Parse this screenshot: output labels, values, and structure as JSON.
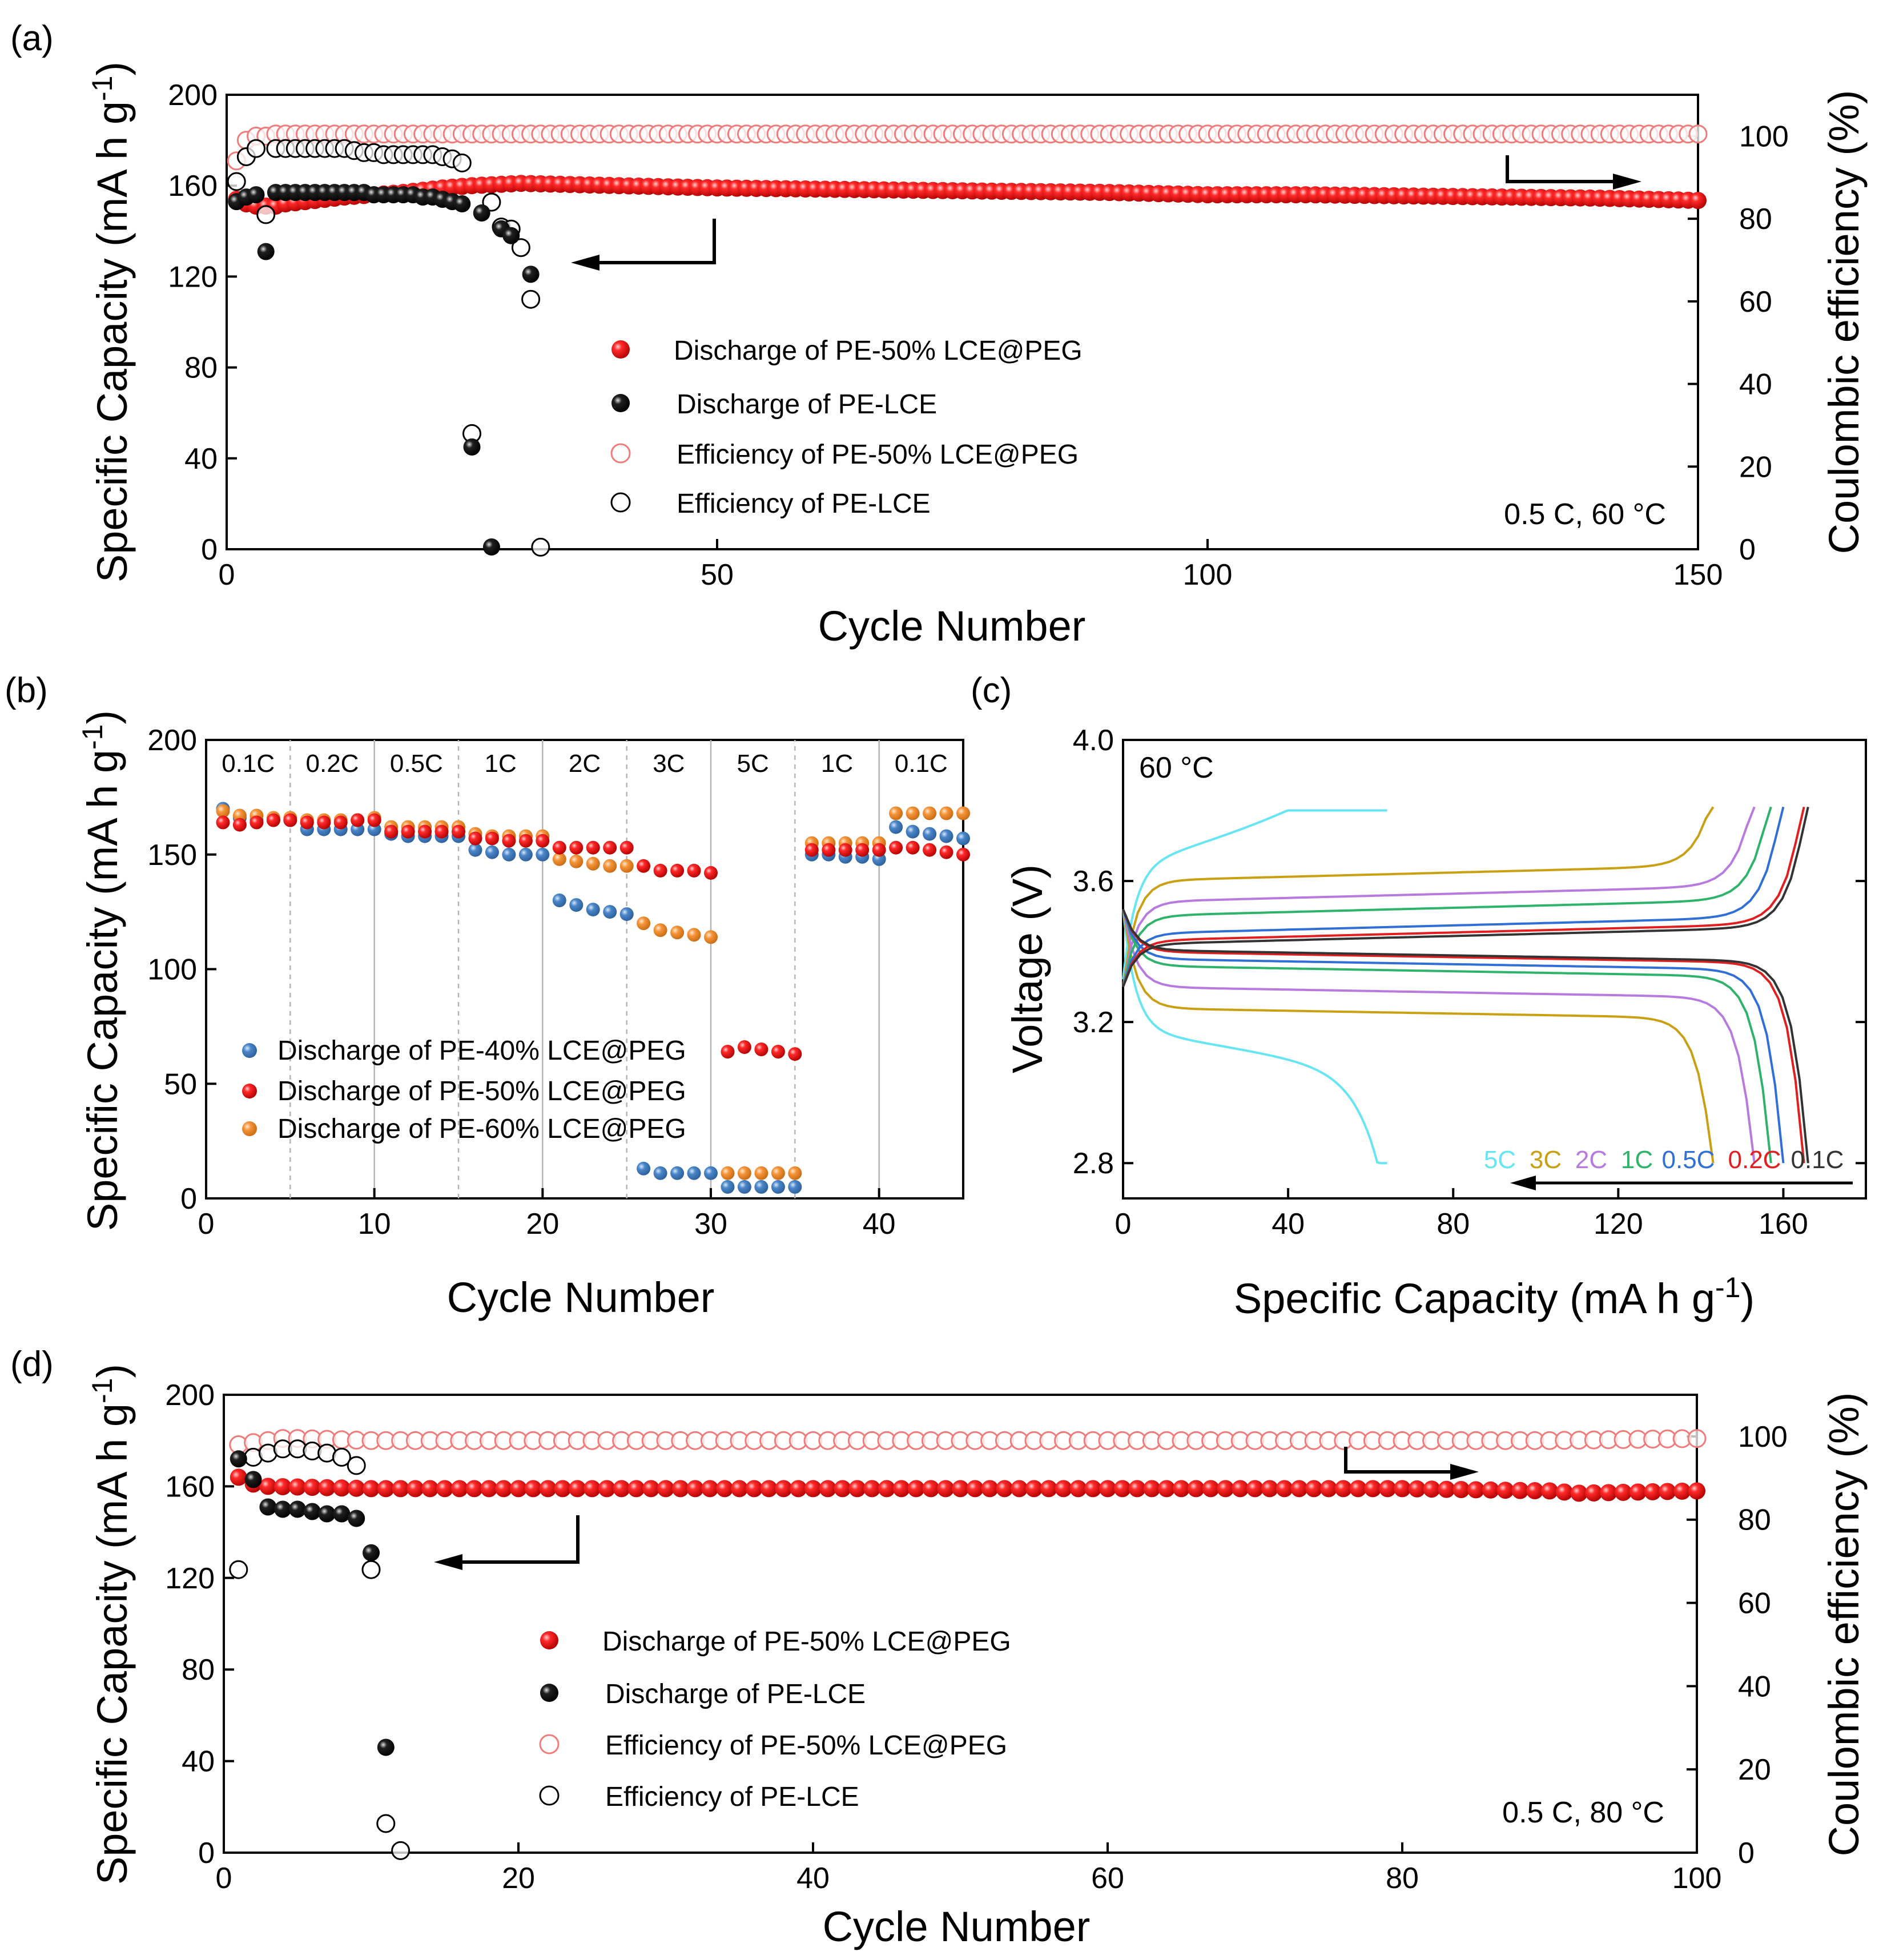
{
  "colors": {
    "pe50": "#e31a1c",
    "pelce": "#000000",
    "pe50_eff": "#f07b7b",
    "pe40": "#4a86c8",
    "pe60": "#f5953a",
    "curves": {
      "5C": "#66e5f2",
      "3C": "#c9a014",
      "2C": "#b77be0",
      "1C": "#2fb36a",
      "0.5C": "#2f6fd6",
      "0.2C": "#e02020",
      "0.1C": "#333333"
    }
  },
  "chart_data": [
    {
      "panel_label": "(a)",
      "type": "scatter",
      "xlabel": "Cycle Number",
      "ylabel": "Specific Capacity (mA h g",
      "ylabel_sup": "-1",
      "ylabel_close": ")",
      "y2label": "Coulombic efficiency (%)",
      "xlim": [
        0,
        150
      ],
      "ylim": [
        0,
        200
      ],
      "y2lim": [
        0,
        110
      ],
      "xticks": [
        0,
        50,
        100,
        150
      ],
      "yticks": [
        0,
        40,
        80,
        120,
        160,
        200
      ],
      "y2ticks": [
        0,
        20,
        40,
        60,
        80,
        100
      ],
      "annotation": "0.5 C, 60 °C",
      "legend": [
        "Discharge of   PE-50% LCE@PEG",
        "Discharge of   PE-LCE",
        "Efficiency of PE-50% LCE@PEG",
        "Efficiency of PE-LCE"
      ],
      "series": [
        {
          "name": "Discharge of PE-50% LCE@PEG",
          "axis": "left",
          "style": "filled-red",
          "points": [
            [
              1,
              154
            ],
            [
              2,
              152
            ],
            [
              3,
              151
            ],
            [
              4,
              151
            ],
            [
              5,
              151
            ],
            [
              6,
              152
            ],
            [
              8,
              153
            ],
            [
              10,
              154
            ],
            [
              12,
              155
            ],
            [
              15,
              156
            ],
            [
              18,
              157
            ],
            [
              20,
              158
            ],
            [
              22,
              159
            ],
            [
              25,
              160
            ],
            [
              30,
              161
            ],
            [
              40,
              160
            ],
            [
              50,
              159
            ],
            [
              60,
              158.5
            ],
            [
              70,
              158
            ],
            [
              80,
              157.5
            ],
            [
              90,
              157
            ],
            [
              100,
              156
            ],
            [
              110,
              156
            ],
            [
              120,
              155.5
            ],
            [
              130,
              155
            ],
            [
              140,
              154.5
            ],
            [
              150,
              153.5
            ]
          ]
        },
        {
          "name": "Discharge of PE-LCE",
          "axis": "left",
          "style": "filled-black",
          "points": [
            [
              1,
              153
            ],
            [
              2,
              155
            ],
            [
              3,
              156
            ],
            [
              4,
              131
            ],
            [
              5,
              157
            ],
            [
              6,
              157
            ],
            [
              7,
              157
            ],
            [
              8,
              157
            ],
            [
              9,
              157
            ],
            [
              10,
              157
            ],
            [
              11,
              157
            ],
            [
              12,
              157
            ],
            [
              13,
              157
            ],
            [
              14,
              157
            ],
            [
              15,
              156
            ],
            [
              16,
              156
            ],
            [
              17,
              156
            ],
            [
              18,
              156
            ],
            [
              19,
              156
            ],
            [
              20,
              155
            ],
            [
              21,
              155
            ],
            [
              22,
              154
            ],
            [
              23,
              153
            ],
            [
              24,
              152
            ],
            [
              25,
              45
            ],
            [
              26,
              148
            ],
            [
              27,
              1
            ],
            [
              28,
              141
            ],
            [
              29,
              138
            ],
            [
              31,
              121
            ]
          ]
        },
        {
          "name": "Efficiency of PE-50% LCE@PEG",
          "axis": "right",
          "style": "open-red",
          "points": [
            [
              1,
              94
            ],
            [
              2,
              99
            ],
            [
              3,
              100
            ],
            [
              4,
              100
            ],
            [
              5,
              100.5
            ],
            [
              6,
              100.5
            ],
            [
              7,
              100.5
            ],
            [
              8,
              100.5
            ],
            [
              9,
              100.5
            ],
            [
              10,
              100.5
            ],
            [
              12,
              100.5
            ],
            [
              15,
              100.5
            ],
            [
              20,
              100.5
            ],
            [
              30,
              100.5
            ],
            [
              40,
              100.5
            ],
            [
              50,
              100.5
            ],
            [
              60,
              100.5
            ],
            [
              70,
              100.5
            ],
            [
              80,
              100.5
            ],
            [
              90,
              100.5
            ],
            [
              100,
              100.5
            ],
            [
              110,
              100.5
            ],
            [
              120,
              100.5
            ],
            [
              130,
              100.5
            ],
            [
              140,
              100.5
            ],
            [
              150,
              100.5
            ]
          ]
        },
        {
          "name": "Efficiency of PE-LCE",
          "axis": "right",
          "style": "open-black",
          "points": [
            [
              1,
              89
            ],
            [
              2,
              95
            ],
            [
              3,
              97
            ],
            [
              4,
              81
            ],
            [
              5,
              97
            ],
            [
              6,
              97
            ],
            [
              7,
              97
            ],
            [
              8,
              97
            ],
            [
              9,
              97
            ],
            [
              10,
              97
            ],
            [
              11,
              97
            ],
            [
              12,
              97
            ],
            [
              13,
              96.5
            ],
            [
              14,
              96
            ],
            [
              15,
              96
            ],
            [
              16,
              95.5
            ],
            [
              17,
              95.5
            ],
            [
              18,
              95.5
            ],
            [
              19,
              95.5
            ],
            [
              20,
              95.5
            ],
            [
              21,
              95.5
            ],
            [
              22,
              95
            ],
            [
              23,
              94.5
            ],
            [
              24,
              93.5
            ],
            [
              25,
              28
            ],
            [
              27,
              84
            ],
            [
              28,
              78
            ],
            [
              29,
              77.5
            ],
            [
              30,
              73
            ],
            [
              31,
              60.5
            ],
            [
              32,
              0.5
            ]
          ]
        }
      ]
    },
    {
      "panel_label": "(b)",
      "type": "scatter",
      "xlabel": "Cycle Number",
      "ylabel": "Specific Capacity (mA h g",
      "ylabel_sup": "-1",
      "ylabel_close": ")",
      "xlim": [
        0,
        45
      ],
      "ylim": [
        0,
        200
      ],
      "xticks": [
        0,
        10,
        20,
        30,
        40
      ],
      "yticks": [
        0,
        50,
        100,
        150,
        200
      ],
      "rate_labels": [
        "0.1C",
        "0.2C",
        "0.5C",
        "1C",
        "2C",
        "3C",
        "5C",
        "1C",
        "0.1C"
      ],
      "rate_boundaries": [
        5,
        10,
        15,
        20,
        25,
        30,
        35,
        40
      ],
      "legend": [
        "Discharge of   PE-40% LCE@PEG",
        "Discharge of   PE-50% LCE@PEG",
        "Discharge of   PE-60% LCE@PEG"
      ],
      "series": [
        {
          "name": "Discharge of PE-40% LCE@PEG",
          "values": [
            170,
            166,
            165,
            165,
            165,
            161,
            161,
            161,
            161,
            161,
            159,
            158,
            158,
            158,
            158,
            152,
            151,
            150,
            150,
            150,
            130,
            128,
            126,
            125,
            124,
            13,
            11,
            11,
            11,
            11,
            5,
            5,
            5,
            5,
            5,
            150,
            150,
            149,
            149,
            148,
            162,
            160,
            159,
            158,
            157
          ]
        },
        {
          "name": "Discharge of PE-50% LCE@PEG",
          "values": [
            164,
            163,
            164,
            165,
            165,
            164,
            164,
            164,
            165,
            165,
            160,
            160,
            160,
            160,
            160,
            157,
            157,
            156,
            156,
            156,
            153,
            153,
            153,
            153,
            153,
            145,
            143,
            143,
            143,
            142,
            64,
            66,
            65,
            64,
            63,
            152,
            152,
            152,
            152,
            152,
            153,
            153,
            152,
            151,
            150
          ]
        },
        {
          "name": "Discharge of PE-60% LCE@PEG",
          "values": [
            169,
            167,
            167,
            166,
            166,
            165,
            165,
            165,
            165,
            166,
            162,
            162,
            162,
            162,
            162,
            159,
            158,
            158,
            158,
            158,
            148,
            147,
            146,
            145,
            145,
            120,
            117,
            116,
            115,
            114,
            11,
            11,
            11,
            11,
            11,
            155,
            155,
            155,
            155,
            155,
            168,
            168,
            168,
            168,
            168
          ]
        }
      ]
    },
    {
      "panel_label": "(c)",
      "type": "line",
      "xlabel": "Specific Capacity (mA h g",
      "xlabel_sup": "-1",
      "xlabel_close": ")",
      "ylabel": "Voltage (V)",
      "xlim": [
        0,
        180
      ],
      "ylim": [
        2.7,
        4.0
      ],
      "xticks": [
        0,
        40,
        80,
        120,
        160
      ],
      "yticks": [
        2.8,
        3.2,
        3.6,
        4.0
      ],
      "annotation": "60 °C",
      "rates": [
        "5C",
        "3C",
        "2C",
        "1C",
        "0.5C",
        "0.2C",
        "0.1C"
      ],
      "series": [
        {
          "name": "5C",
          "capacity": 64,
          "charge_plateau": 3.62,
          "discharge_plateau": 3.18
        },
        {
          "name": "3C",
          "capacity": 143,
          "charge_plateau": 3.6,
          "discharge_plateau": 3.24
        },
        {
          "name": "2C",
          "capacity": 153,
          "charge_plateau": 3.54,
          "discharge_plateau": 3.3
        },
        {
          "name": "1C",
          "capacity": 157,
          "charge_plateau": 3.5,
          "discharge_plateau": 3.36
        },
        {
          "name": "0.5C",
          "capacity": 160,
          "charge_plateau": 3.45,
          "discharge_plateau": 3.38
        },
        {
          "name": "0.2C",
          "capacity": 165,
          "charge_plateau": 3.43,
          "discharge_plateau": 3.4
        },
        {
          "name": "0.1C",
          "capacity": 166,
          "charge_plateau": 3.42,
          "discharge_plateau": 3.405
        }
      ]
    },
    {
      "panel_label": "(d)",
      "type": "scatter",
      "xlabel": "Cycle Number",
      "ylabel": "Specific Capacity (mA h g",
      "ylabel_sup": "-1",
      "ylabel_close": ")",
      "y2label": "Coulombic efficiency (%)",
      "xlim": [
        0,
        100
      ],
      "ylim": [
        0,
        200
      ],
      "y2lim": [
        0,
        110
      ],
      "xticks": [
        0,
        20,
        40,
        60,
        80,
        100
      ],
      "yticks": [
        0,
        40,
        80,
        120,
        160,
        200
      ],
      "y2ticks": [
        0,
        20,
        40,
        60,
        80,
        100
      ],
      "annotation": "0.5 C,  80 °C",
      "legend": [
        "Discharge of   PE-50% LCE@PEG",
        "Discharge of   PE-LCE",
        "Efficiency of PE-50% LCE@PEG",
        "Efficiency of PE-LCE"
      ],
      "series": [
        {
          "name": "Discharge of PE-50% LCE@PEG",
          "axis": "left",
          "style": "filled-red",
          "points": [
            [
              1,
              164
            ],
            [
              2,
              161
            ],
            [
              3,
              160
            ],
            [
              10,
              159
            ],
            [
              20,
              159
            ],
            [
              30,
              159
            ],
            [
              40,
              159
            ],
            [
              50,
              159
            ],
            [
              60,
              159
            ],
            [
              70,
              159
            ],
            [
              80,
              159
            ],
            [
              90,
              158
            ],
            [
              92,
              157
            ],
            [
              100,
              158
            ]
          ]
        },
        {
          "name": "Discharge of PE-LCE",
          "axis": "left",
          "style": "filled-black",
          "points": [
            [
              1,
              172
            ],
            [
              2,
              163
            ],
            [
              3,
              151
            ],
            [
              4,
              150
            ],
            [
              5,
              150
            ],
            [
              6,
              149
            ],
            [
              7,
              148
            ],
            [
              8,
              148
            ],
            [
              9,
              146
            ],
            [
              10,
              131
            ],
            [
              11,
              46
            ]
          ]
        },
        {
          "name": "Efficiency of PE-50% LCE@PEG",
          "axis": "right",
          "style": "open-red",
          "points": [
            [
              1,
              98
            ],
            [
              2,
              98.5
            ],
            [
              3,
              99
            ],
            [
              4,
              99.5
            ],
            [
              5,
              99.5
            ],
            [
              10,
              99
            ],
            [
              20,
              99
            ],
            [
              30,
              99
            ],
            [
              40,
              99
            ],
            [
              50,
              99
            ],
            [
              60,
              99
            ],
            [
              70,
              99
            ],
            [
              80,
              99
            ],
            [
              90,
              99
            ],
            [
              100,
              99.5
            ]
          ]
        },
        {
          "name": "Efficiency of PE-LCE",
          "axis": "right",
          "style": "open-black",
          "points": [
            [
              1,
              68
            ],
            [
              2,
              95
            ],
            [
              3,
              96
            ],
            [
              4,
              97
            ],
            [
              5,
              97
            ],
            [
              6,
              96.5
            ],
            [
              7,
              96
            ],
            [
              8,
              95
            ],
            [
              9,
              93
            ],
            [
              10,
              68
            ],
            [
              11,
              7
            ],
            [
              12,
              0.5
            ]
          ]
        }
      ]
    }
  ]
}
